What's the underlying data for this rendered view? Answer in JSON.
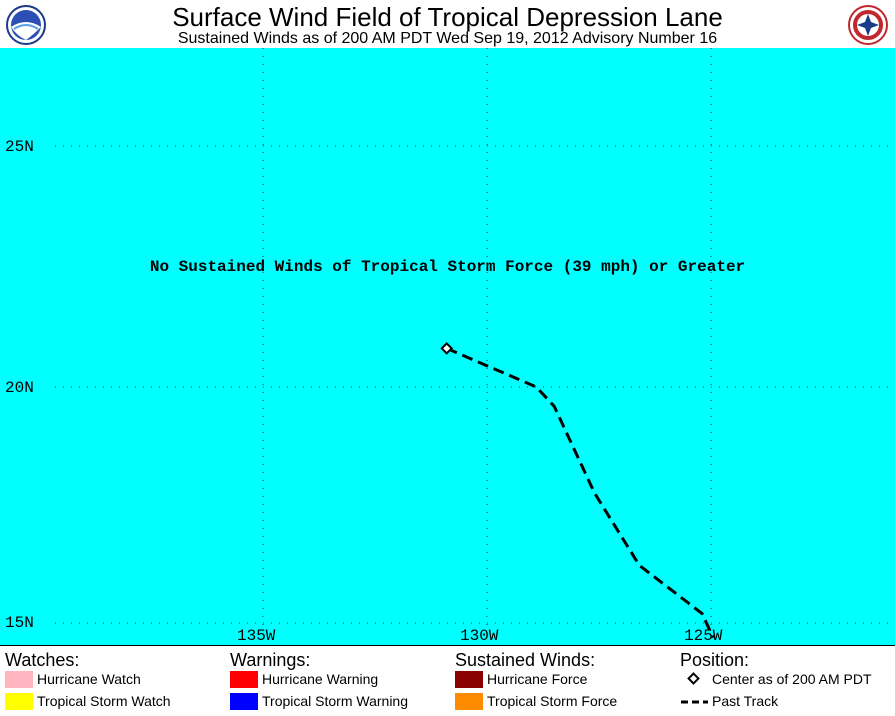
{
  "header": {
    "title": "Surface Wind Field of Tropical Depression Lane",
    "subtitle": "Sustained Winds as of 200 AM PDT Wed Sep 19, 2012    Advisory Number 16",
    "logo_left_text": "NOAA",
    "logo_right_text": "NATIONAL WEATHER SERVICE"
  },
  "map": {
    "background": "#00ffff",
    "notice": "No Sustained Winds of Tropical Storm Force (39 mph) or Greater",
    "lat_labels": [
      "25N",
      "20N",
      "15N"
    ],
    "lon_labels": [
      "135W",
      "130W",
      "125W"
    ],
    "storm": {
      "center_marker": "diamond",
      "center_position": {
        "lat": 20.8,
        "lon": 130.9
      },
      "past_track": [
        {
          "lat": 20.8,
          "lon": 130.9
        },
        {
          "lat": 20.0,
          "lon": 128.9
        },
        {
          "lat": 19.6,
          "lon": 128.5
        },
        {
          "lat": 17.8,
          "lon": 127.6
        },
        {
          "lat": 16.3,
          "lon": 126.6
        },
        {
          "lat": 15.3,
          "lon": 125.2
        },
        {
          "lat": 14.8,
          "lon": 124.95
        }
      ]
    }
  },
  "legend": {
    "watches": {
      "heading": "Watches:",
      "items": [
        {
          "label": "Hurricane Watch",
          "color": "#ffb6c1"
        },
        {
          "label": "Tropical Storm Watch",
          "color": "#ffff00"
        }
      ]
    },
    "warnings": {
      "heading": "Warnings:",
      "items": [
        {
          "label": "Hurricane Warning",
          "color": "#ff0000"
        },
        {
          "label": "Tropical Storm Warning",
          "color": "#0000ff"
        }
      ]
    },
    "winds": {
      "heading": "Sustained Winds:",
      "items": [
        {
          "label": "Hurricane Force",
          "color": "#8b0000"
        },
        {
          "label": "Tropical Storm Force",
          "color": "#ff8c00"
        }
      ]
    },
    "position": {
      "heading": "Position:",
      "items": [
        {
          "label": "Center as of 200 AM PDT",
          "icon": "diamond-icon"
        },
        {
          "label": "Past Track",
          "icon": "dashed-line-icon"
        }
      ]
    }
  }
}
